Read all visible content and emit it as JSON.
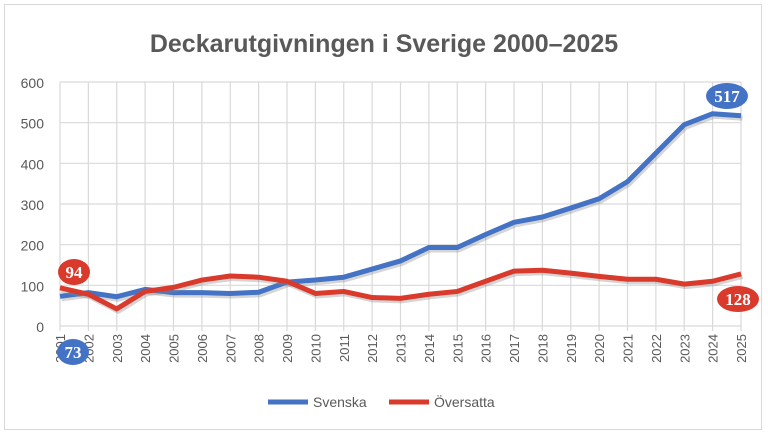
{
  "chart_data": {
    "type": "line",
    "title": "Deckarutgivningen i Sverige 2000–2025",
    "xlabel": "",
    "ylabel": "",
    "x": [
      "2001",
      "2002",
      "2003",
      "2004",
      "2005",
      "2006",
      "2007",
      "2008",
      "2009",
      "2010",
      "2011",
      "2012",
      "2013",
      "2014",
      "2015",
      "2016",
      "2017",
      "2018",
      "2019",
      "2020",
      "2021",
      "2022",
      "2023",
      "2024",
      "2025"
    ],
    "ylim": [
      0,
      600
    ],
    "yticks": [
      0,
      100,
      200,
      300,
      400,
      500,
      600
    ],
    "grid": true,
    "legend": "bottom",
    "series": [
      {
        "name": "Svenska",
        "color": "#4472c4",
        "values": [
          73,
          82,
          72,
          90,
          82,
          82,
          80,
          83,
          108,
          113,
          120,
          140,
          160,
          193,
          193,
          225,
          255,
          268,
          290,
          313,
          355,
          425,
          495,
          522,
          517
        ]
      },
      {
        "name": "Översatta",
        "color": "#d93a2b",
        "values": [
          94,
          78,
          42,
          85,
          95,
          113,
          123,
          120,
          110,
          80,
          85,
          70,
          68,
          78,
          85,
          110,
          135,
          137,
          130,
          122,
          115,
          115,
          103,
          110,
          128
        ]
      }
    ],
    "annotations": [
      {
        "series": "Svenska",
        "x": "2001",
        "text": "73"
      },
      {
        "series": "Översatta",
        "x": "2001",
        "text": "94"
      },
      {
        "series": "Svenska",
        "x": "2025",
        "text": "517"
      },
      {
        "series": "Översatta",
        "x": "2025",
        "text": "128"
      }
    ]
  }
}
